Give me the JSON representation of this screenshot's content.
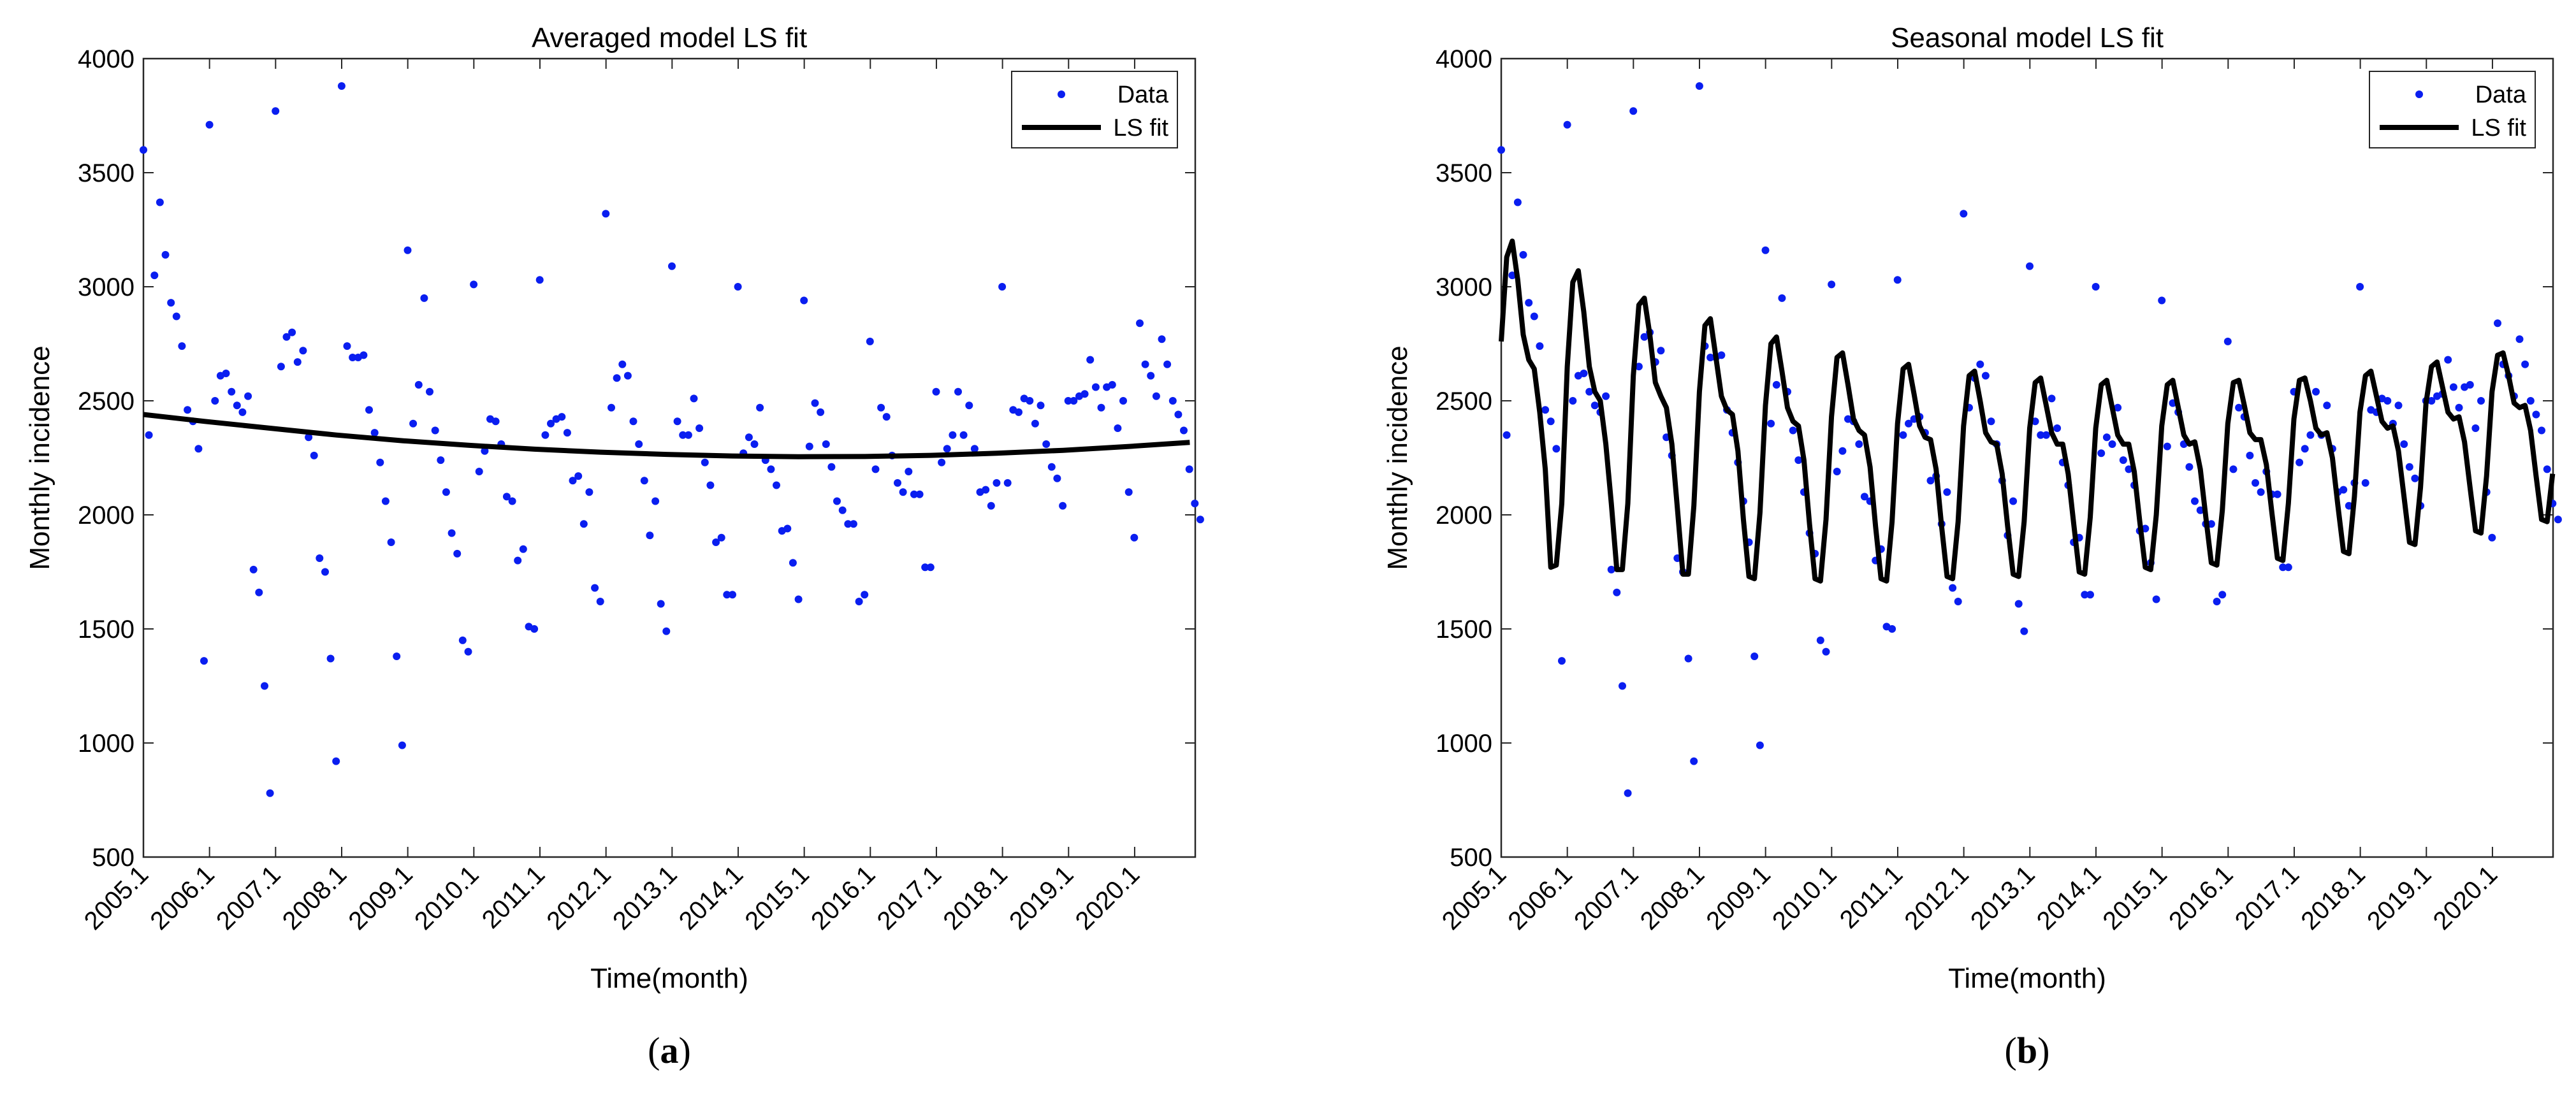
{
  "colors": {
    "data_marker": "#0a1ef0",
    "fit_line": "#000000",
    "axes": "#262626",
    "background": "#ffffff"
  },
  "panels": [
    {
      "caption": "(a)",
      "caption_letter": "a",
      "legend_position": "top-right",
      "legend_entries": [
        "Data",
        "LS fit"
      ]
    },
    {
      "caption": "(b)",
      "caption_letter": "b",
      "legend_position": "top-right",
      "legend_entries": [
        "Data",
        "LS fit"
      ]
    }
  ],
  "chart_data": [
    {
      "type": "scatter",
      "title": "Averaged model LS fit",
      "xlabel": "Time(month)",
      "ylabel": "Monthly incidence",
      "ylim": [
        500,
        4000
      ],
      "yticks": [
        500,
        1000,
        1500,
        2000,
        2500,
        3000,
        3500,
        4000
      ],
      "xlim": [
        2005.083,
        2021.0
      ],
      "xticks": [
        2005.083,
        2006.083,
        2007.083,
        2008.083,
        2009.083,
        2010.083,
        2011.083,
        2012.083,
        2013.083,
        2014.083,
        2015.083,
        2016.083,
        2017.083,
        2018.083,
        2019.083,
        2020.083
      ],
      "xticklabels": [
        "2005.1",
        "2006.1",
        "2007.1",
        "2008.1",
        "2009.1",
        "2010.1",
        "2011.1",
        "2012.1",
        "2013.1",
        "2014.1",
        "2015.1",
        "2016.1",
        "2017.1",
        "2018.1",
        "2019.1",
        "2020.1"
      ],
      "grid": false,
      "series": [
        {
          "name": "Data",
          "kind": "points",
          "start": 2005.083,
          "step": 0.0833,
          "values": [
            3600,
            2350,
            3050,
            3370,
            3140,
            2930,
            2870,
            2740,
            2460,
            2410,
            2290,
            1360,
            3710,
            2500,
            2610,
            2620,
            2540,
            2480,
            2450,
            2520,
            1760,
            1660,
            1250,
            780,
            3770,
            2650,
            2780,
            2800,
            2670,
            2720,
            2340,
            2260,
            1810,
            1750,
            1370,
            920,
            3880,
            2740,
            2690,
            2690,
            2700,
            2460,
            2360,
            2230,
            2060,
            1880,
            1380,
            990,
            3160,
            2400,
            2570,
            2950,
            2540,
            2370,
            2240,
            2100,
            1920,
            1830,
            1450,
            1400,
            3010,
            2190,
            2280,
            2420,
            2410,
            2310,
            2080,
            2060,
            1800,
            1850,
            1510,
            1500,
            3030,
            2350,
            2400,
            2420,
            2430,
            2360,
            2150,
            2170,
            1960,
            2100,
            1680,
            1620,
            3320,
            2470,
            2600,
            2660,
            2610,
            2410,
            2310,
            2150,
            1910,
            2060,
            1610,
            1490,
            3090,
            2410,
            2350,
            2350,
            2510,
            2380,
            2230,
            2130,
            1880,
            1900,
            1650,
            1650,
            3000,
            2270,
            2340,
            2310,
            2470,
            2240,
            2200,
            2130,
            1930,
            1940,
            1790,
            1630,
            2940,
            2300,
            2490,
            2450,
            2310,
            2210,
            2060,
            2020,
            1960,
            1960,
            1620,
            1650,
            2760,
            2200,
            2470,
            2430,
            2260,
            2140,
            2100,
            2190,
            2090,
            2090,
            1770,
            1770,
            2540,
            2230,
            2290,
            2350,
            2540,
            2350,
            2480,
            2290,
            2100,
            2110,
            2040,
            2140,
            3000,
            2140,
            2460,
            2450,
            2510,
            2500,
            2400,
            2480,
            2310,
            2210,
            2160,
            2040,
            2500,
            2500,
            2520,
            2530,
            2680,
            2560,
            2470,
            2560,
            2570,
            2380,
            2500,
            2100,
            1900,
            2840,
            2660,
            2610,
            2520,
            2770,
            2660,
            2500,
            2440,
            2370,
            2200,
            2050,
            1980
          ]
        },
        {
          "name": "LS fit",
          "kind": "line",
          "x": [
            2005.083,
            2006.0,
            2007.0,
            2008.0,
            2009.0,
            2010.0,
            2011.0,
            2012.0,
            2013.0,
            2014.0,
            2015.0,
            2016.0,
            2017.0,
            2018.0,
            2019.0,
            2020.0,
            2020.917
          ],
          "values": [
            2440,
            2410,
            2380,
            2350,
            2325,
            2305,
            2288,
            2275,
            2265,
            2258,
            2255,
            2256,
            2261,
            2270,
            2283,
            2300,
            2318
          ]
        }
      ]
    },
    {
      "type": "scatter",
      "title": "Seasonal model LS fit",
      "xlabel": "Time(month)",
      "ylabel": "Monthly incidence",
      "ylim": [
        500,
        4000
      ],
      "yticks": [
        500,
        1000,
        1500,
        2000,
        2500,
        3000,
        3500,
        4000
      ],
      "xlim": [
        2005.083,
        2021.0
      ],
      "xticks": [
        2005.083,
        2006.083,
        2007.083,
        2008.083,
        2009.083,
        2010.083,
        2011.083,
        2012.083,
        2013.083,
        2014.083,
        2015.083,
        2016.083,
        2017.083,
        2018.083,
        2019.083,
        2020.083
      ],
      "xticklabels": [
        "2005.1",
        "2006.1",
        "2007.1",
        "2008.1",
        "2009.1",
        "2010.1",
        "2011.1",
        "2012.1",
        "2013.1",
        "2014.1",
        "2015.1",
        "2016.1",
        "2017.1",
        "2018.1",
        "2019.1",
        "2020.1"
      ],
      "grid": false,
      "series": [
        {
          "name": "Data",
          "kind": "points",
          "start": 2005.083,
          "step": 0.0833,
          "values": [
            3600,
            2350,
            3050,
            3370,
            3140,
            2930,
            2870,
            2740,
            2460,
            2410,
            2290,
            1360,
            3710,
            2500,
            2610,
            2620,
            2540,
            2480,
            2450,
            2520,
            1760,
            1660,
            1250,
            780,
            3770,
            2650,
            2780,
            2800,
            2670,
            2720,
            2340,
            2260,
            1810,
            1750,
            1370,
            920,
            3880,
            2740,
            2690,
            2690,
            2700,
            2460,
            2360,
            2230,
            2060,
            1880,
            1380,
            990,
            3160,
            2400,
            2570,
            2950,
            2540,
            2370,
            2240,
            2100,
            1920,
            1830,
            1450,
            1400,
            3010,
            2190,
            2280,
            2420,
            2410,
            2310,
            2080,
            2060,
            1800,
            1850,
            1510,
            1500,
            3030,
            2350,
            2400,
            2420,
            2430,
            2360,
            2150,
            2170,
            1960,
            2100,
            1680,
            1620,
            3320,
            2470,
            2600,
            2660,
            2610,
            2410,
            2310,
            2150,
            1910,
            2060,
            1610,
            1490,
            3090,
            2410,
            2350,
            2350,
            2510,
            2380,
            2230,
            2130,
            1880,
            1900,
            1650,
            1650,
            3000,
            2270,
            2340,
            2310,
            2470,
            2240,
            2200,
            2130,
            1930,
            1940,
            1790,
            1630,
            2940,
            2300,
            2490,
            2450,
            2310,
            2210,
            2060,
            2020,
            1960,
            1960,
            1620,
            1650,
            2760,
            2200,
            2470,
            2430,
            2260,
            2140,
            2100,
            2190,
            2090,
            2090,
            1770,
            1770,
            2540,
            2230,
            2290,
            2350,
            2540,
            2350,
            2480,
            2290,
            2100,
            2110,
            2040,
            2140,
            3000,
            2140,
            2460,
            2450,
            2510,
            2500,
            2400,
            2480,
            2310,
            2210,
            2160,
            2040,
            2500,
            2500,
            2520,
            2530,
            2680,
            2560,
            2470,
            2560,
            2570,
            2380,
            2500,
            2100,
            1900,
            2840,
            2660,
            2610,
            2520,
            2770,
            2660,
            2500,
            2440,
            2370,
            2200,
            2050,
            1980
          ]
        },
        {
          "name": "LS fit",
          "kind": "line",
          "start": 2005.083,
          "step": 0.0833,
          "values": [
            2760,
            3130,
            3200,
            3030,
            2790,
            2680,
            2640,
            2450,
            2200,
            1770,
            1780,
            2050,
            2650,
            3020,
            3070,
            2890,
            2650,
            2540,
            2500,
            2310,
            2050,
            1760,
            1760,
            2050,
            2610,
            2920,
            2950,
            2790,
            2580,
            2520,
            2470,
            2310,
            2030,
            1740,
            1740,
            2040,
            2540,
            2830,
            2860,
            2690,
            2520,
            2460,
            2440,
            2280,
            1980,
            1730,
            1720,
            2010,
            2480,
            2750,
            2780,
            2630,
            2470,
            2410,
            2390,
            2240,
            1960,
            1720,
            1710,
            1980,
            2430,
            2690,
            2710,
            2570,
            2420,
            2370,
            2350,
            2210,
            1950,
            1720,
            1710,
            1970,
            2400,
            2640,
            2660,
            2530,
            2390,
            2340,
            2330,
            2200,
            1950,
            1730,
            1720,
            1970,
            2390,
            2610,
            2630,
            2500,
            2360,
            2320,
            2310,
            2180,
            1950,
            1740,
            1730,
            1970,
            2380,
            2580,
            2600,
            2480,
            2360,
            2310,
            2310,
            2180,
            1960,
            1750,
            1740,
            1990,
            2380,
            2570,
            2590,
            2470,
            2350,
            2310,
            2310,
            2190,
            1970,
            1770,
            1760,
            2000,
            2390,
            2570,
            2590,
            2470,
            2350,
            2310,
            2320,
            2200,
            1990,
            1790,
            1780,
            2020,
            2400,
            2580,
            2590,
            2480,
            2360,
            2330,
            2330,
            2220,
            2010,
            1810,
            1800,
            2050,
            2420,
            2590,
            2600,
            2500,
            2380,
            2350,
            2360,
            2250,
            2040,
            1840,
            1830,
            2080,
            2450,
            2610,
            2630,
            2520,
            2410,
            2380,
            2390,
            2280,
            2080,
            1880,
            1870,
            2120,
            2490,
            2650,
            2670,
            2560,
            2450,
            2420,
            2430,
            2320,
            2120,
            1930,
            1920,
            2170,
            2540,
            2700,
            2710,
            2610,
            2490,
            2470,
            2480,
            2370,
            2170,
            1980,
            1970,
            2180
          ]
        }
      ]
    }
  ]
}
